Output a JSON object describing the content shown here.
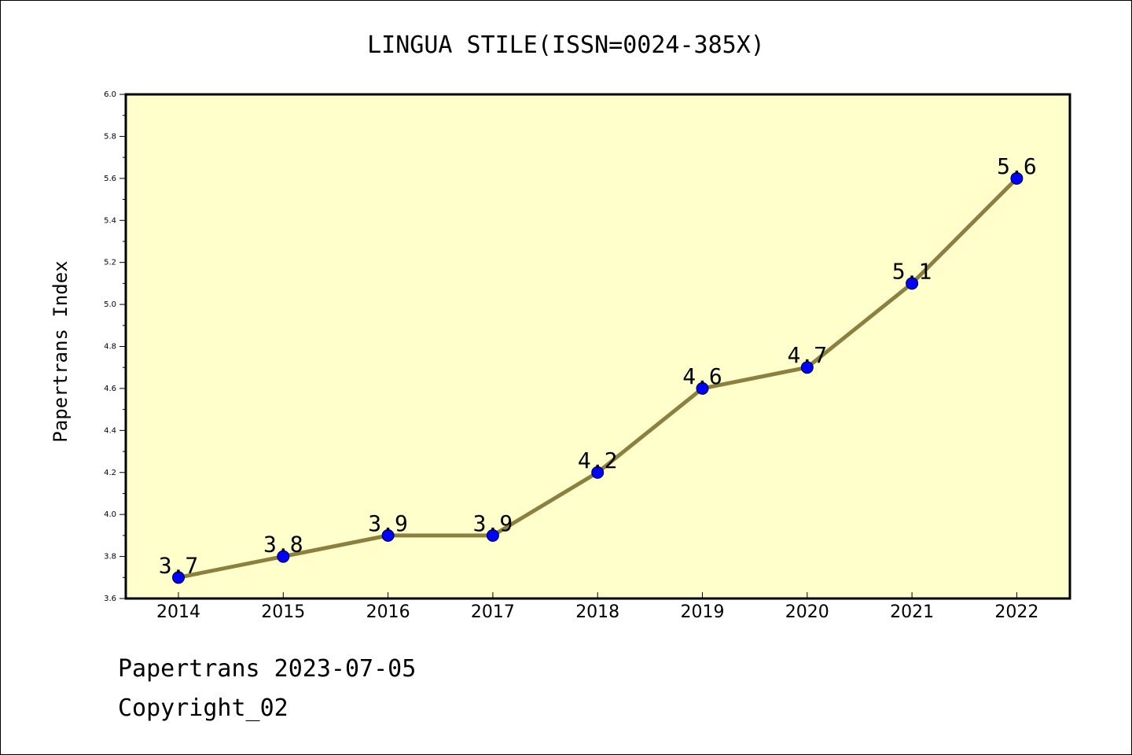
{
  "chart_data": {
    "type": "line",
    "title": "LINGUA STILE(ISSN=0024-385X)",
    "xlabel": "",
    "ylabel": "Papertrans Index",
    "categories": [
      "2014",
      "2015",
      "2016",
      "2017",
      "2018",
      "2019",
      "2020",
      "2021",
      "2022"
    ],
    "series": [
      {
        "values": [
          3.7,
          3.8,
          3.9,
          3.9,
          4.2,
          4.6,
          4.7,
          5.1,
          5.6
        ],
        "labels": [
          "3.7",
          "3.8",
          "3.9",
          "3.9",
          "4.2",
          "4.6",
          "4.7",
          "5.1",
          "5.6"
        ]
      }
    ],
    "ylim": [
      3.6,
      6.0
    ],
    "yticks": [
      "3.6",
      "3.8",
      "4.0",
      "4.2",
      "4.4",
      "4.6",
      "4.8",
      "5.0",
      "5.2",
      "5.4",
      "5.6",
      "5.8",
      "6.0"
    ],
    "grid": false,
    "legend": "none",
    "colors": {
      "plot_background": "#ffffcc",
      "line": "#8b8040",
      "marker": "#0000ff"
    }
  },
  "footer": {
    "date_line": "Papertrans 2023-07-05",
    "copyright_line": "Copyright_02"
  }
}
